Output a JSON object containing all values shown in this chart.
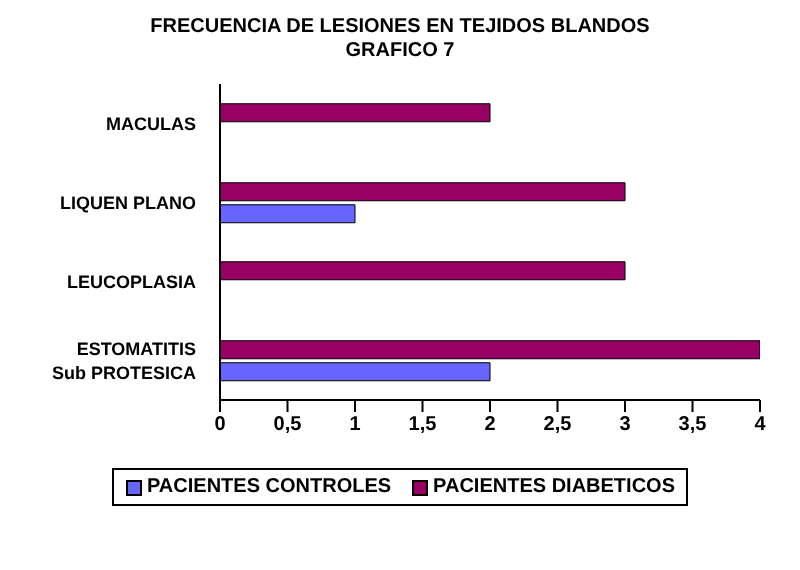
{
  "chart_data": {
    "type": "bar",
    "orientation": "horizontal",
    "title": "FRECUENCIA DE LESIONES EN TEJIDOS BLANDOS",
    "subtitle": "GRAFICO 7",
    "categories": [
      "MACULAS",
      "LIQUEN PLANO",
      "LEUCOPLASIA",
      "ESTOMATITIS Sub PROTESICA"
    ],
    "series": [
      {
        "name": "PACIENTES CONTROLES",
        "color": "#6666ff",
        "values": [
          0,
          1,
          0,
          2
        ]
      },
      {
        "name": "PACIENTES DIABETICOS",
        "color": "#990066",
        "values": [
          2,
          3,
          3,
          4
        ]
      }
    ],
    "xlim": [
      0,
      4
    ],
    "xticks": [
      0,
      {
        "value": 0.5,
        "label": "0,5"
      },
      1,
      {
        "value": 1.5,
        "label": "1,5"
      },
      2,
      {
        "value": 2.5,
        "label": "2,5"
      },
      3,
      {
        "value": 3.5,
        "label": "3,5"
      },
      4
    ],
    "grid": false,
    "legend": "bottom"
  }
}
